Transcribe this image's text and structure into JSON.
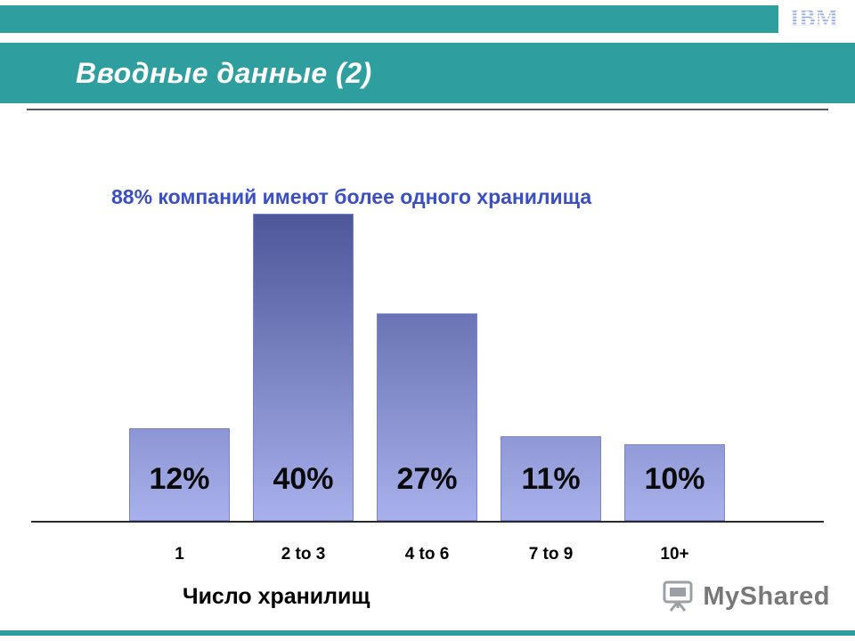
{
  "slide": {
    "title": "Вводные данные (2)"
  },
  "logo": {
    "ibm": "IBM"
  },
  "chart_data": {
    "type": "bar",
    "title": "88% компаний имеют более одного хранилища",
    "categories": [
      "1",
      "2 to 3",
      "4 to 6",
      "7 to 9",
      "10+"
    ],
    "values": [
      12,
      40,
      27,
      11,
      10
    ],
    "value_labels": [
      "12%",
      "40%",
      "27%",
      "11%",
      "10%"
    ],
    "xlabel": "Число хранилищ",
    "ylabel": "",
    "ylim": [
      0,
      40
    ],
    "grid": false,
    "legend": false,
    "bar_color_top": "#4C5699",
    "bar_color_bottom": "#A8B1EB"
  },
  "footer": {
    "watermark": "MyShared"
  },
  "colors": {
    "teal": "#2F9E9E",
    "annotation_blue": "#3A4FC4",
    "ibm_blue": "#9FB0E8",
    "watermark_gray": "#787878"
  }
}
